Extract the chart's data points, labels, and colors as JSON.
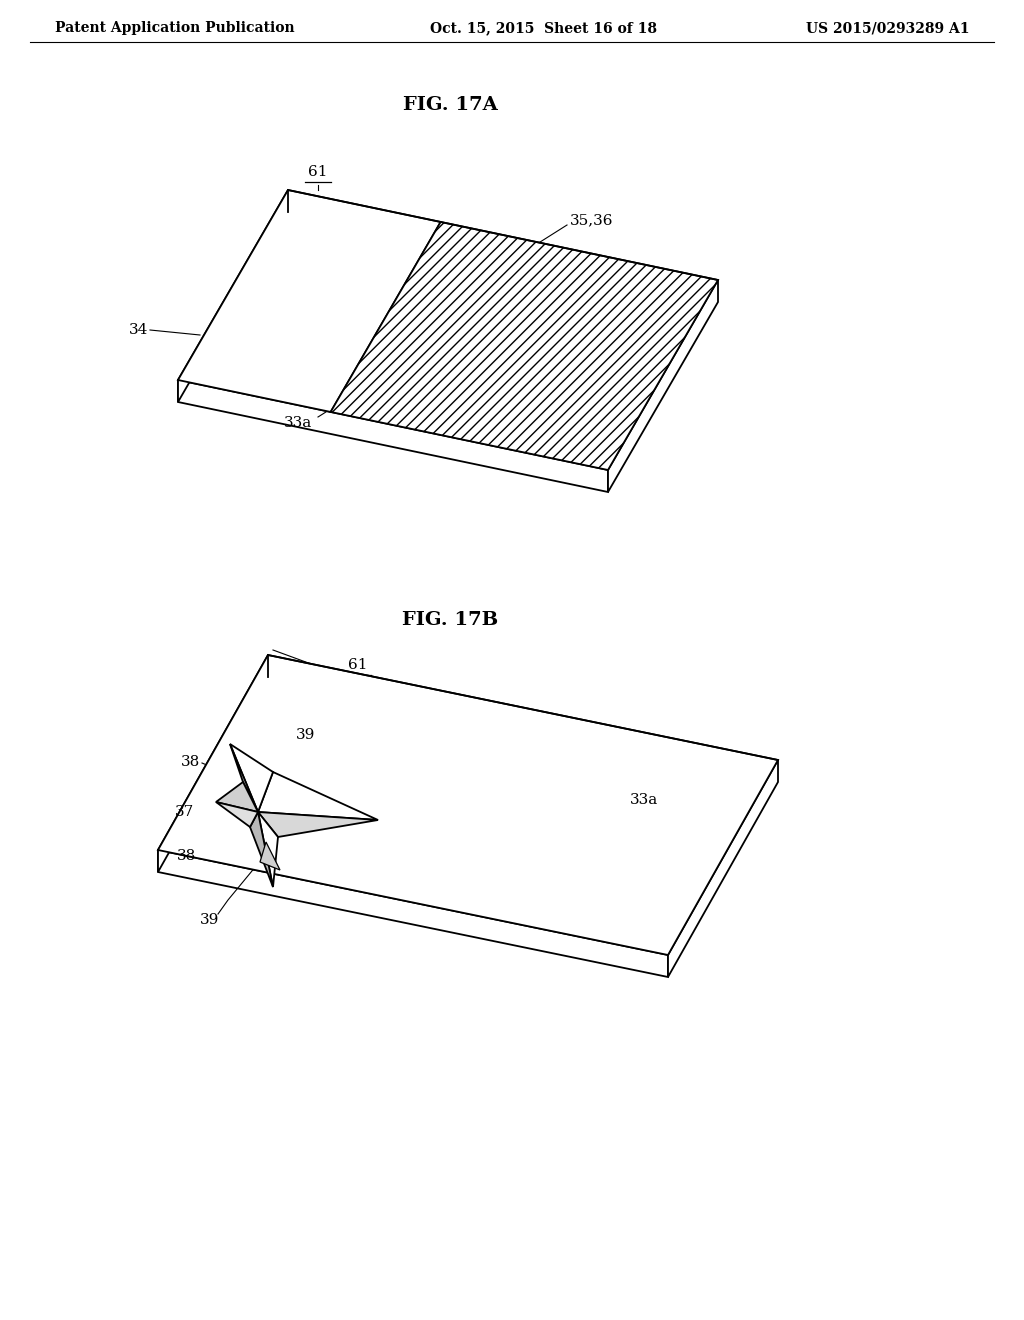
{
  "header_left": "Patent Application Publication",
  "header_mid": "Oct. 15, 2015  Sheet 16 of 18",
  "header_right": "US 2015/0293289 A1",
  "fig_a_title": "FIG. 17A",
  "fig_b_title": "FIG. 17B",
  "bg_color": "#ffffff",
  "line_color": "#000000",
  "label_fontsize": 11,
  "header_fontsize": 10,
  "fig_title_fontsize": 14
}
